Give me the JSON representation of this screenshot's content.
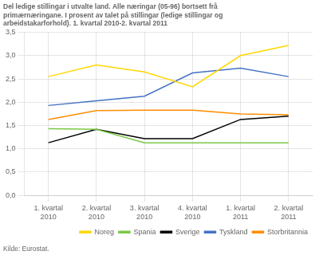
{
  "chart_data": {
    "type": "line",
    "title": "Del ledige stillingar i utvalte land. Alle næringar (05-96) bortsett frå\nprimærnæringane. I prosent av talet på stillingar (ledige stillingar og\narbeidstakarforhold). 1. kvartal 2010-2. kvartal 2011",
    "source": "Kilde: Eurostat.",
    "categories": [
      "1. kvartal\n2010",
      "2. kvartal\n2010",
      "3. kvartal\n2010",
      "4. kvartal\n2010",
      "1. kvartal\n2011",
      "2. kvartal\n2011"
    ],
    "series": [
      {
        "name": "Noreg",
        "color": "#FFD700",
        "values": [
          2.55,
          2.8,
          2.65,
          2.33,
          3.0,
          3.22
        ]
      },
      {
        "name": "Spania",
        "color": "#7AC943",
        "values": [
          1.43,
          1.42,
          1.13,
          1.13,
          1.13,
          1.13
        ]
      },
      {
        "name": "Sverige",
        "color": "#000000",
        "values": [
          1.13,
          1.42,
          1.22,
          1.22,
          1.63,
          1.7
        ]
      },
      {
        "name": "Tyskland",
        "color": "#4472C4",
        "values": [
          1.93,
          2.03,
          2.13,
          2.63,
          2.73,
          2.55
        ]
      },
      {
        "name": "Storbritannia",
        "color": "#FF8C00",
        "values": [
          1.63,
          1.82,
          1.83,
          1.83,
          1.75,
          1.73
        ]
      }
    ],
    "ylim": [
      0.0,
      3.5
    ],
    "yticks": [
      {
        "value": 0.0,
        "label": "0,0"
      },
      {
        "value": 0.5,
        "label": "0,5"
      },
      {
        "value": 1.0,
        "label": "1,0"
      },
      {
        "value": 1.5,
        "label": "1,5"
      },
      {
        "value": 2.0,
        "label": "2,0"
      },
      {
        "value": 2.5,
        "label": "2,5"
      },
      {
        "value": 3.0,
        "label": "3,0"
      },
      {
        "value": 3.5,
        "label": "3,5"
      }
    ],
    "grid": true,
    "legend": "lower right"
  }
}
